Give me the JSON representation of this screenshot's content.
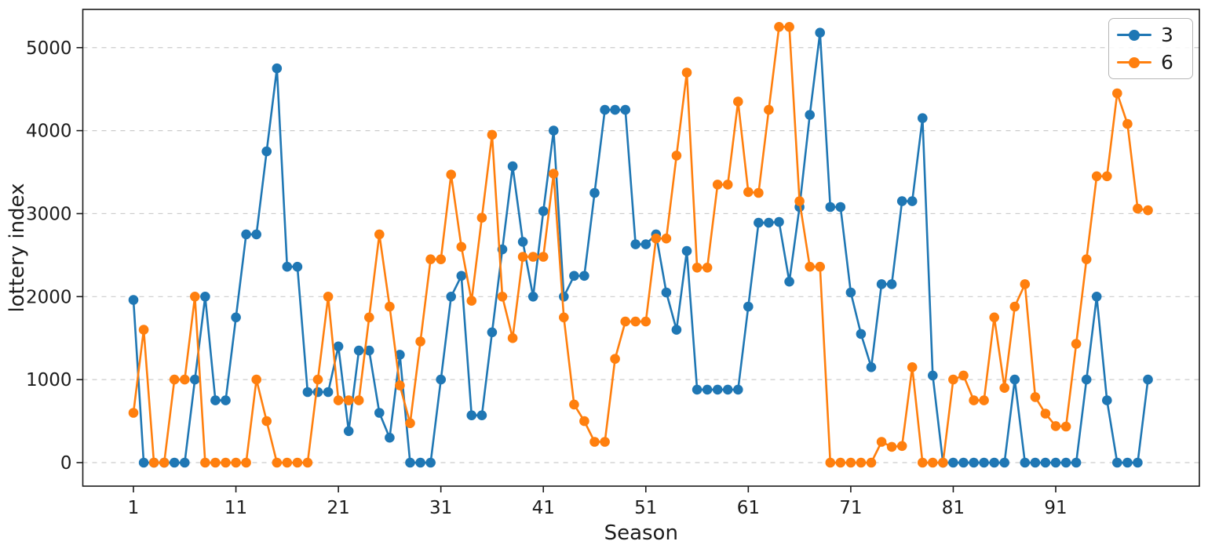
{
  "chart_data": {
    "type": "line",
    "title": "",
    "xlabel": "Season",
    "ylabel": "lottery index",
    "legend_position": "upper right",
    "grid": "horizontal-dashed",
    "grid_color": "#cccccc",
    "axis_color": "#1a1a1a",
    "marker": "circle",
    "xlim": [
      -3.9,
      105.0
    ],
    "ylim": [
      -283,
      5460
    ],
    "xticks": [
      1,
      11,
      21,
      31,
      41,
      51,
      61,
      71,
      81,
      91
    ],
    "yticks": [
      0,
      1000,
      2000,
      3000,
      4000,
      5000
    ],
    "x": [
      1,
      2,
      3,
      4,
      5,
      6,
      7,
      8,
      9,
      10,
      11,
      12,
      13,
      14,
      15,
      16,
      17,
      18,
      19,
      20,
      21,
      22,
      23,
      24,
      25,
      26,
      27,
      28,
      29,
      30,
      31,
      32,
      33,
      34,
      35,
      36,
      37,
      38,
      39,
      40,
      41,
      42,
      43,
      44,
      45,
      46,
      47,
      48,
      49,
      50,
      51,
      52,
      53,
      54,
      55,
      56,
      57,
      58,
      59,
      60,
      61,
      62,
      63,
      64,
      65,
      66,
      67,
      68,
      69,
      70,
      71,
      72,
      73,
      74,
      75,
      76,
      77,
      78,
      79,
      80,
      81,
      82,
      83,
      84,
      85,
      86,
      87,
      88,
      89,
      90,
      91,
      92,
      93,
      94,
      95,
      96,
      97,
      98,
      99,
      100
    ],
    "series": [
      {
        "name": "3",
        "color": "#1f77b4",
        "values": [
          1960,
          0,
          0,
          0,
          0,
          0,
          1000,
          2000,
          750,
          750,
          1750,
          2750,
          2750,
          3750,
          4750,
          2360,
          2360,
          850,
          850,
          850,
          1400,
          380,
          1350,
          1350,
          600,
          300,
          1300,
          0,
          0,
          0,
          1000,
          2000,
          2250,
          570,
          570,
          1570,
          2570,
          3570,
          2660,
          2000,
          3030,
          4000,
          2000,
          2250,
          2250,
          3250,
          4250,
          4250,
          4250,
          2630,
          2630,
          2750,
          2050,
          1600,
          2550,
          880,
          880,
          880,
          880,
          880,
          1880,
          2890,
          2890,
          2900,
          2180,
          3080,
          4190,
          5180,
          3080,
          3080,
          2050,
          1550,
          1150,
          2150,
          2150,
          3150,
          3150,
          4150,
          1050,
          0,
          0,
          0,
          0,
          0,
          0,
          0,
          1000,
          0,
          0,
          0,
          0,
          0,
          0,
          1000,
          2000,
          750,
          0,
          0,
          0,
          1000
        ]
      },
      {
        "name": "6",
        "color": "#ff7f0e",
        "values": [
          600,
          1600,
          0,
          0,
          1000,
          1000,
          2000,
          0,
          0,
          0,
          0,
          0,
          1000,
          500,
          0,
          0,
          0,
          0,
          1000,
          2000,
          750,
          750,
          750,
          1750,
          2750,
          1880,
          930,
          475,
          1460,
          2450,
          2450,
          3470,
          2600,
          1950,
          2950,
          3950,
          2000,
          1500,
          2480,
          2480,
          2480,
          3480,
          1750,
          700,
          500,
          250,
          250,
          1250,
          1700,
          1700,
          1700,
          2700,
          2700,
          3700,
          4700,
          2350,
          2350,
          3350,
          3350,
          4350,
          3260,
          3250,
          4250,
          5250,
          5250,
          3150,
          2360,
          2360,
          0,
          0,
          0,
          0,
          0,
          250,
          190,
          200,
          1150,
          0,
          0,
          0,
          1000,
          1050,
          750,
          750,
          1750,
          900,
          1880,
          2150,
          790,
          590,
          440,
          435,
          1430,
          2450,
          3450,
          3450,
          4450,
          4080,
          3060,
          3040
        ]
      }
    ]
  }
}
